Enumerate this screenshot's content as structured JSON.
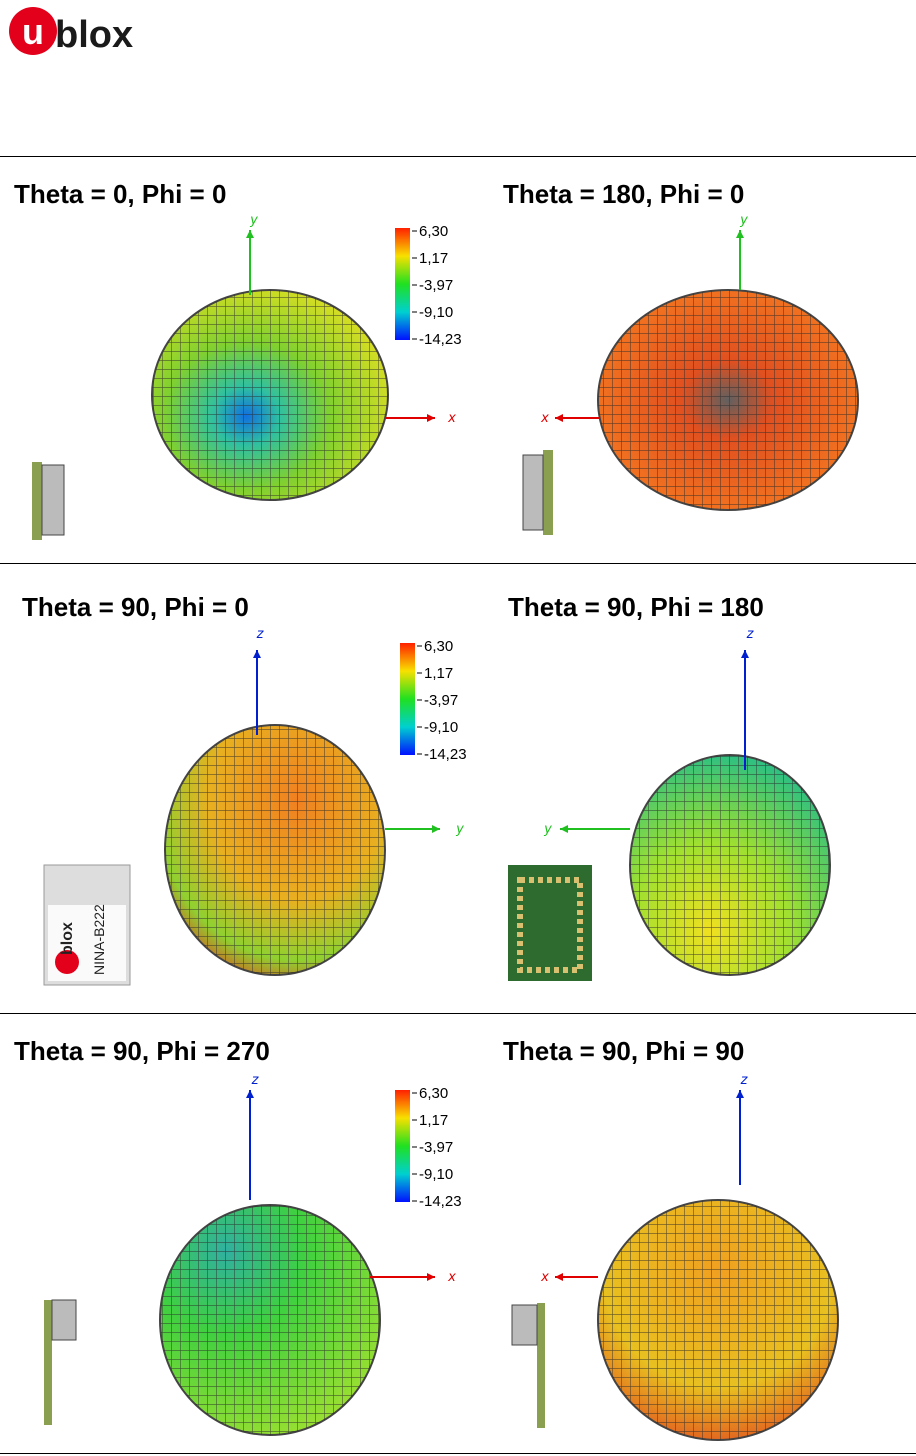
{
  "header": {
    "logo_mark": "u",
    "logo_text": "blox"
  },
  "rows": [
    {
      "colorbar": [
        "6,30",
        "1,17",
        "-3,97",
        "-9,10",
        "-14,23"
      ],
      "panels": [
        {
          "title": "Theta = 0, Phi = 0",
          "axes": [
            "y",
            "x"
          ]
        },
        {
          "title": "Theta = 180, Phi = 0",
          "axes": [
            "y",
            "x"
          ]
        }
      ]
    },
    {
      "colorbar": [
        "6,30",
        "1,17",
        "-3,97",
        "-9,10",
        "-14,23"
      ],
      "module": {
        "brand": "blox",
        "name": "NINA-B222"
      },
      "panels": [
        {
          "title": "Theta = 90, Phi = 0",
          "axes": [
            "z",
            "y"
          ]
        },
        {
          "title": "Theta = 90, Phi = 180",
          "axes": [
            "z",
            "y"
          ]
        }
      ]
    },
    {
      "colorbar": [
        "6,30",
        "1,17",
        "-3,97",
        "-9,10",
        "-14,23"
      ],
      "panels": [
        {
          "title": "Theta = 90, Phi = 270",
          "axes": [
            "z",
            "x"
          ]
        },
        {
          "title": "Theta = 90, Phi = 90",
          "axes": [
            "z",
            "x"
          ]
        }
      ]
    }
  ]
}
